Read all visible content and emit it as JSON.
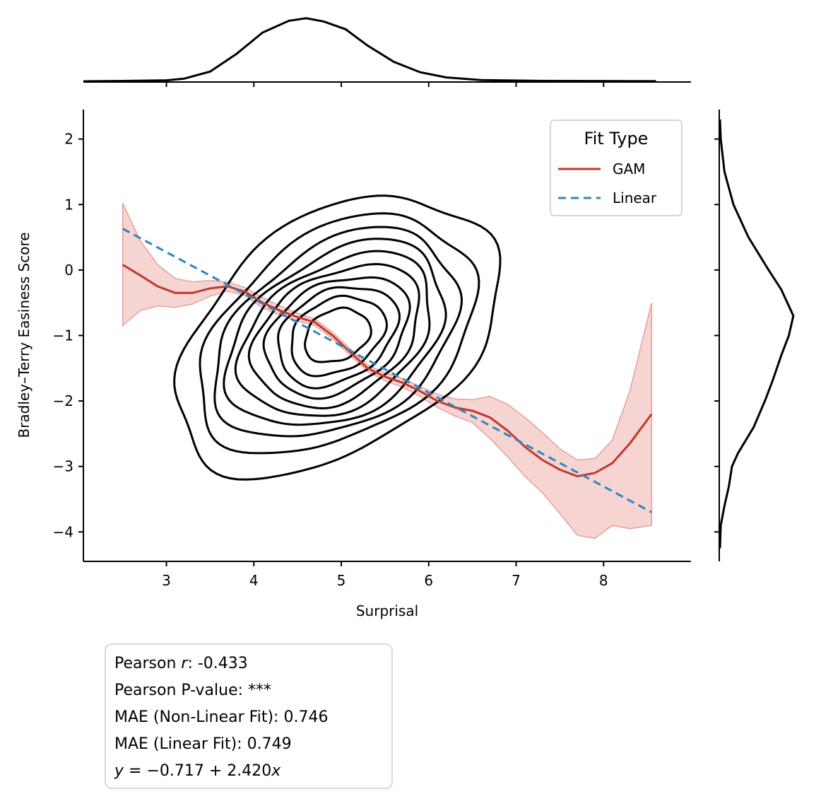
{
  "chart_data": {
    "type": "jointplot-kde-regression",
    "xlabel": "Surprisal",
    "ylabel": "Bradley–Terry Easiness Score",
    "xlim": [
      2.05,
      9.0
    ],
    "ylim": [
      -4.45,
      2.45
    ],
    "x_ticks": [
      3,
      4,
      5,
      6,
      7,
      8
    ],
    "y_ticks": [
      2,
      1,
      0,
      -1,
      -2,
      -3,
      -4
    ],
    "x_tick_labels": [
      "3",
      "4",
      "5",
      "6",
      "7",
      "8"
    ],
    "y_tick_labels": [
      "2",
      "1",
      "0",
      "−1",
      "−2",
      "−3",
      "−4"
    ],
    "legend": {
      "title": "Fit Type",
      "position": "top-right",
      "entries": [
        {
          "label": "GAM",
          "color": "#c0392b",
          "style": "solid"
        },
        {
          "label": "Linear",
          "color": "#2e86c1",
          "style": "dashed"
        }
      ]
    },
    "series": [
      {
        "name": "GAM",
        "color": "#c0392b",
        "points": [
          [
            2.5,
            0.08
          ],
          [
            2.7,
            -0.08
          ],
          [
            2.9,
            -0.25
          ],
          [
            3.1,
            -0.35
          ],
          [
            3.3,
            -0.35
          ],
          [
            3.5,
            -0.28
          ],
          [
            3.7,
            -0.25
          ],
          [
            3.9,
            -0.33
          ],
          [
            4.1,
            -0.5
          ],
          [
            4.3,
            -0.62
          ],
          [
            4.5,
            -0.72
          ],
          [
            4.7,
            -0.8
          ],
          [
            4.9,
            -1.0
          ],
          [
            5.1,
            -1.25
          ],
          [
            5.3,
            -1.5
          ],
          [
            5.5,
            -1.63
          ],
          [
            5.7,
            -1.72
          ],
          [
            5.9,
            -1.85
          ],
          [
            6.1,
            -2.0
          ],
          [
            6.3,
            -2.1
          ],
          [
            6.5,
            -2.15
          ],
          [
            6.7,
            -2.25
          ],
          [
            6.9,
            -2.45
          ],
          [
            7.1,
            -2.7
          ],
          [
            7.3,
            -2.9
          ],
          [
            7.5,
            -3.05
          ],
          [
            7.7,
            -3.15
          ],
          [
            7.9,
            -3.1
          ],
          [
            8.1,
            -2.95
          ],
          [
            8.3,
            -2.65
          ],
          [
            8.55,
            -2.2
          ]
        ]
      },
      {
        "name": "Linear",
        "color": "#2e86c1",
        "points": [
          [
            2.5,
            0.63
          ],
          [
            8.55,
            -3.7
          ]
        ]
      }
    ],
    "confidence_band": {
      "series": "GAM",
      "color": "#e8a09a",
      "upper": [
        [
          2.5,
          1.02
        ],
        [
          2.7,
          0.45
        ],
        [
          2.9,
          0.08
        ],
        [
          3.1,
          -0.13
        ],
        [
          3.3,
          -0.18
        ],
        [
          3.5,
          -0.16
        ],
        [
          3.7,
          -0.18
        ],
        [
          3.9,
          -0.27
        ],
        [
          4.1,
          -0.42
        ],
        [
          4.3,
          -0.55
        ],
        [
          4.5,
          -0.66
        ],
        [
          4.7,
          -0.75
        ],
        [
          4.9,
          -0.95
        ],
        [
          5.1,
          -1.2
        ],
        [
          5.3,
          -1.45
        ],
        [
          5.5,
          -1.57
        ],
        [
          5.7,
          -1.66
        ],
        [
          5.9,
          -1.78
        ],
        [
          6.1,
          -1.9
        ],
        [
          6.3,
          -1.97
        ],
        [
          6.5,
          -1.98
        ],
        [
          6.7,
          -1.93
        ],
        [
          6.9,
          -2.05
        ],
        [
          7.1,
          -2.25
        ],
        [
          7.3,
          -2.48
        ],
        [
          7.5,
          -2.73
        ],
        [
          7.7,
          -2.9
        ],
        [
          7.9,
          -2.88
        ],
        [
          8.1,
          -2.6
        ],
        [
          8.3,
          -1.85
        ],
        [
          8.55,
          -0.5
        ]
      ],
      "lower": [
        [
          2.5,
          -0.85
        ],
        [
          2.7,
          -0.62
        ],
        [
          2.9,
          -0.55
        ],
        [
          3.1,
          -0.57
        ],
        [
          3.3,
          -0.52
        ],
        [
          3.5,
          -0.4
        ],
        [
          3.7,
          -0.32
        ],
        [
          3.9,
          -0.39
        ],
        [
          4.1,
          -0.58
        ],
        [
          4.3,
          -0.69
        ],
        [
          4.5,
          -0.78
        ],
        [
          4.7,
          -0.85
        ],
        [
          4.9,
          -1.05
        ],
        [
          5.1,
          -1.3
        ],
        [
          5.3,
          -1.55
        ],
        [
          5.5,
          -1.69
        ],
        [
          5.7,
          -1.79
        ],
        [
          5.9,
          -1.93
        ],
        [
          6.1,
          -2.1
        ],
        [
          6.3,
          -2.23
        ],
        [
          6.5,
          -2.33
        ],
        [
          6.7,
          -2.57
        ],
        [
          6.9,
          -2.85
        ],
        [
          7.1,
          -3.15
        ],
        [
          7.3,
          -3.4
        ],
        [
          7.5,
          -3.72
        ],
        [
          7.7,
          -4.05
        ],
        [
          7.9,
          -4.1
        ],
        [
          8.1,
          -3.9
        ],
        [
          8.3,
          -3.95
        ],
        [
          8.55,
          -3.9
        ]
      ]
    },
    "kde_contours": {
      "center": [
        4.95,
        -1.0
      ],
      "angle_deg": -35,
      "levels": [
        {
          "a": 1.52,
          "b": 2.38
        },
        {
          "a": 1.32,
          "b": 2.02
        },
        {
          "a": 1.17,
          "b": 1.77
        },
        {
          "a": 1.05,
          "b": 1.57
        },
        {
          "a": 0.93,
          "b": 1.38
        },
        {
          "a": 0.82,
          "b": 1.19
        },
        {
          "a": 0.71,
          "b": 1.0
        },
        {
          "a": 0.6,
          "b": 0.83
        },
        {
          "a": 0.48,
          "b": 0.65
        },
        {
          "a": 0.34,
          "b": 0.44
        }
      ]
    },
    "marginal_x": {
      "points": [
        [
          2.05,
          0.0
        ],
        [
          2.5,
          0.005
        ],
        [
          3.0,
          0.015
        ],
        [
          3.2,
          0.04
        ],
        [
          3.5,
          0.15
        ],
        [
          3.8,
          0.42
        ],
        [
          4.1,
          0.75
        ],
        [
          4.4,
          0.93
        ],
        [
          4.6,
          0.97
        ],
        [
          4.8,
          0.92
        ],
        [
          5.05,
          0.8
        ],
        [
          5.3,
          0.55
        ],
        [
          5.6,
          0.3
        ],
        [
          5.9,
          0.14
        ],
        [
          6.2,
          0.06
        ],
        [
          6.6,
          0.02
        ],
        [
          7.2,
          0.008
        ],
        [
          8.0,
          0.004
        ],
        [
          8.6,
          0.002
        ]
      ]
    },
    "marginal_y": {
      "points": [
        [
          2.3,
          0.0
        ],
        [
          2.0,
          0.01
        ],
        [
          1.5,
          0.06
        ],
        [
          1.0,
          0.18
        ],
        [
          0.5,
          0.38
        ],
        [
          0.0,
          0.65
        ],
        [
          -0.3,
          0.82
        ],
        [
          -0.7,
          0.98
        ],
        [
          -1.0,
          0.92
        ],
        [
          -1.3,
          0.82
        ],
        [
          -1.7,
          0.7
        ],
        [
          -2.0,
          0.6
        ],
        [
          -2.4,
          0.45
        ],
        [
          -2.8,
          0.24
        ],
        [
          -3.0,
          0.16
        ],
        [
          -3.3,
          0.12
        ],
        [
          -3.6,
          0.06
        ],
        [
          -3.9,
          0.01
        ],
        [
          -4.25,
          0.0
        ]
      ]
    },
    "stats": {
      "pearson_r_label": "Pearson ",
      "pearson_r_symbol": "r",
      "pearson_r_value": ": -0.433",
      "pearson_p": "Pearson P-value: ***",
      "mae_nonlinear": "MAE (Non-Linear Fit): 0.746",
      "mae_linear": "MAE (Linear Fit): 0.749",
      "equation_y": "y",
      "equation_rest": " = −0.717 + 2.420",
      "equation_x": "x"
    }
  }
}
